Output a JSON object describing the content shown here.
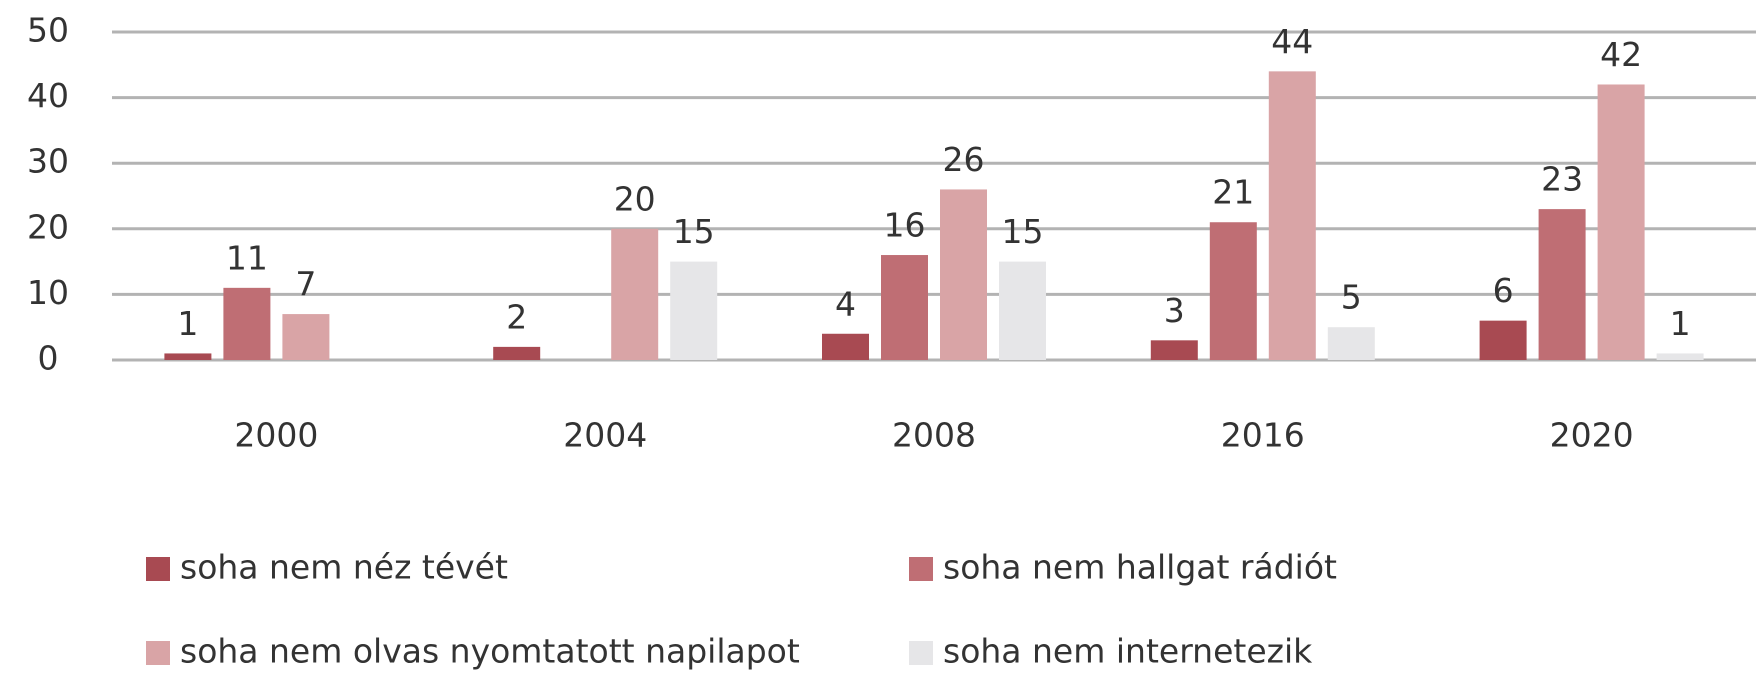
{
  "chart_data": {
    "type": "bar",
    "categories": [
      "2000",
      "2004",
      "2008",
      "2016",
      "2020"
    ],
    "series": [
      {
        "name": "soha nem néz tévét",
        "color": "#a84a52",
        "values": [
          1,
          2,
          4,
          3,
          6
        ]
      },
      {
        "name": "soha nem hallgat rádiót",
        "color": "#bf6e74",
        "values": [
          11,
          null,
          16,
          21,
          23
        ]
      },
      {
        "name": "soha nem olvas nyomtatott napilapot",
        "color": "#d9a4a6",
        "values": [
          7,
          20,
          26,
          44,
          42
        ]
      },
      {
        "name": "soha nem internetezik",
        "color": "#e6e6e8",
        "values": [
          null,
          15,
          15,
          5,
          1
        ]
      }
    ],
    "ylim": [
      0,
      50
    ],
    "yticks": [
      0,
      10,
      20,
      30,
      40,
      50
    ],
    "grid": true,
    "legend": "bottom"
  }
}
